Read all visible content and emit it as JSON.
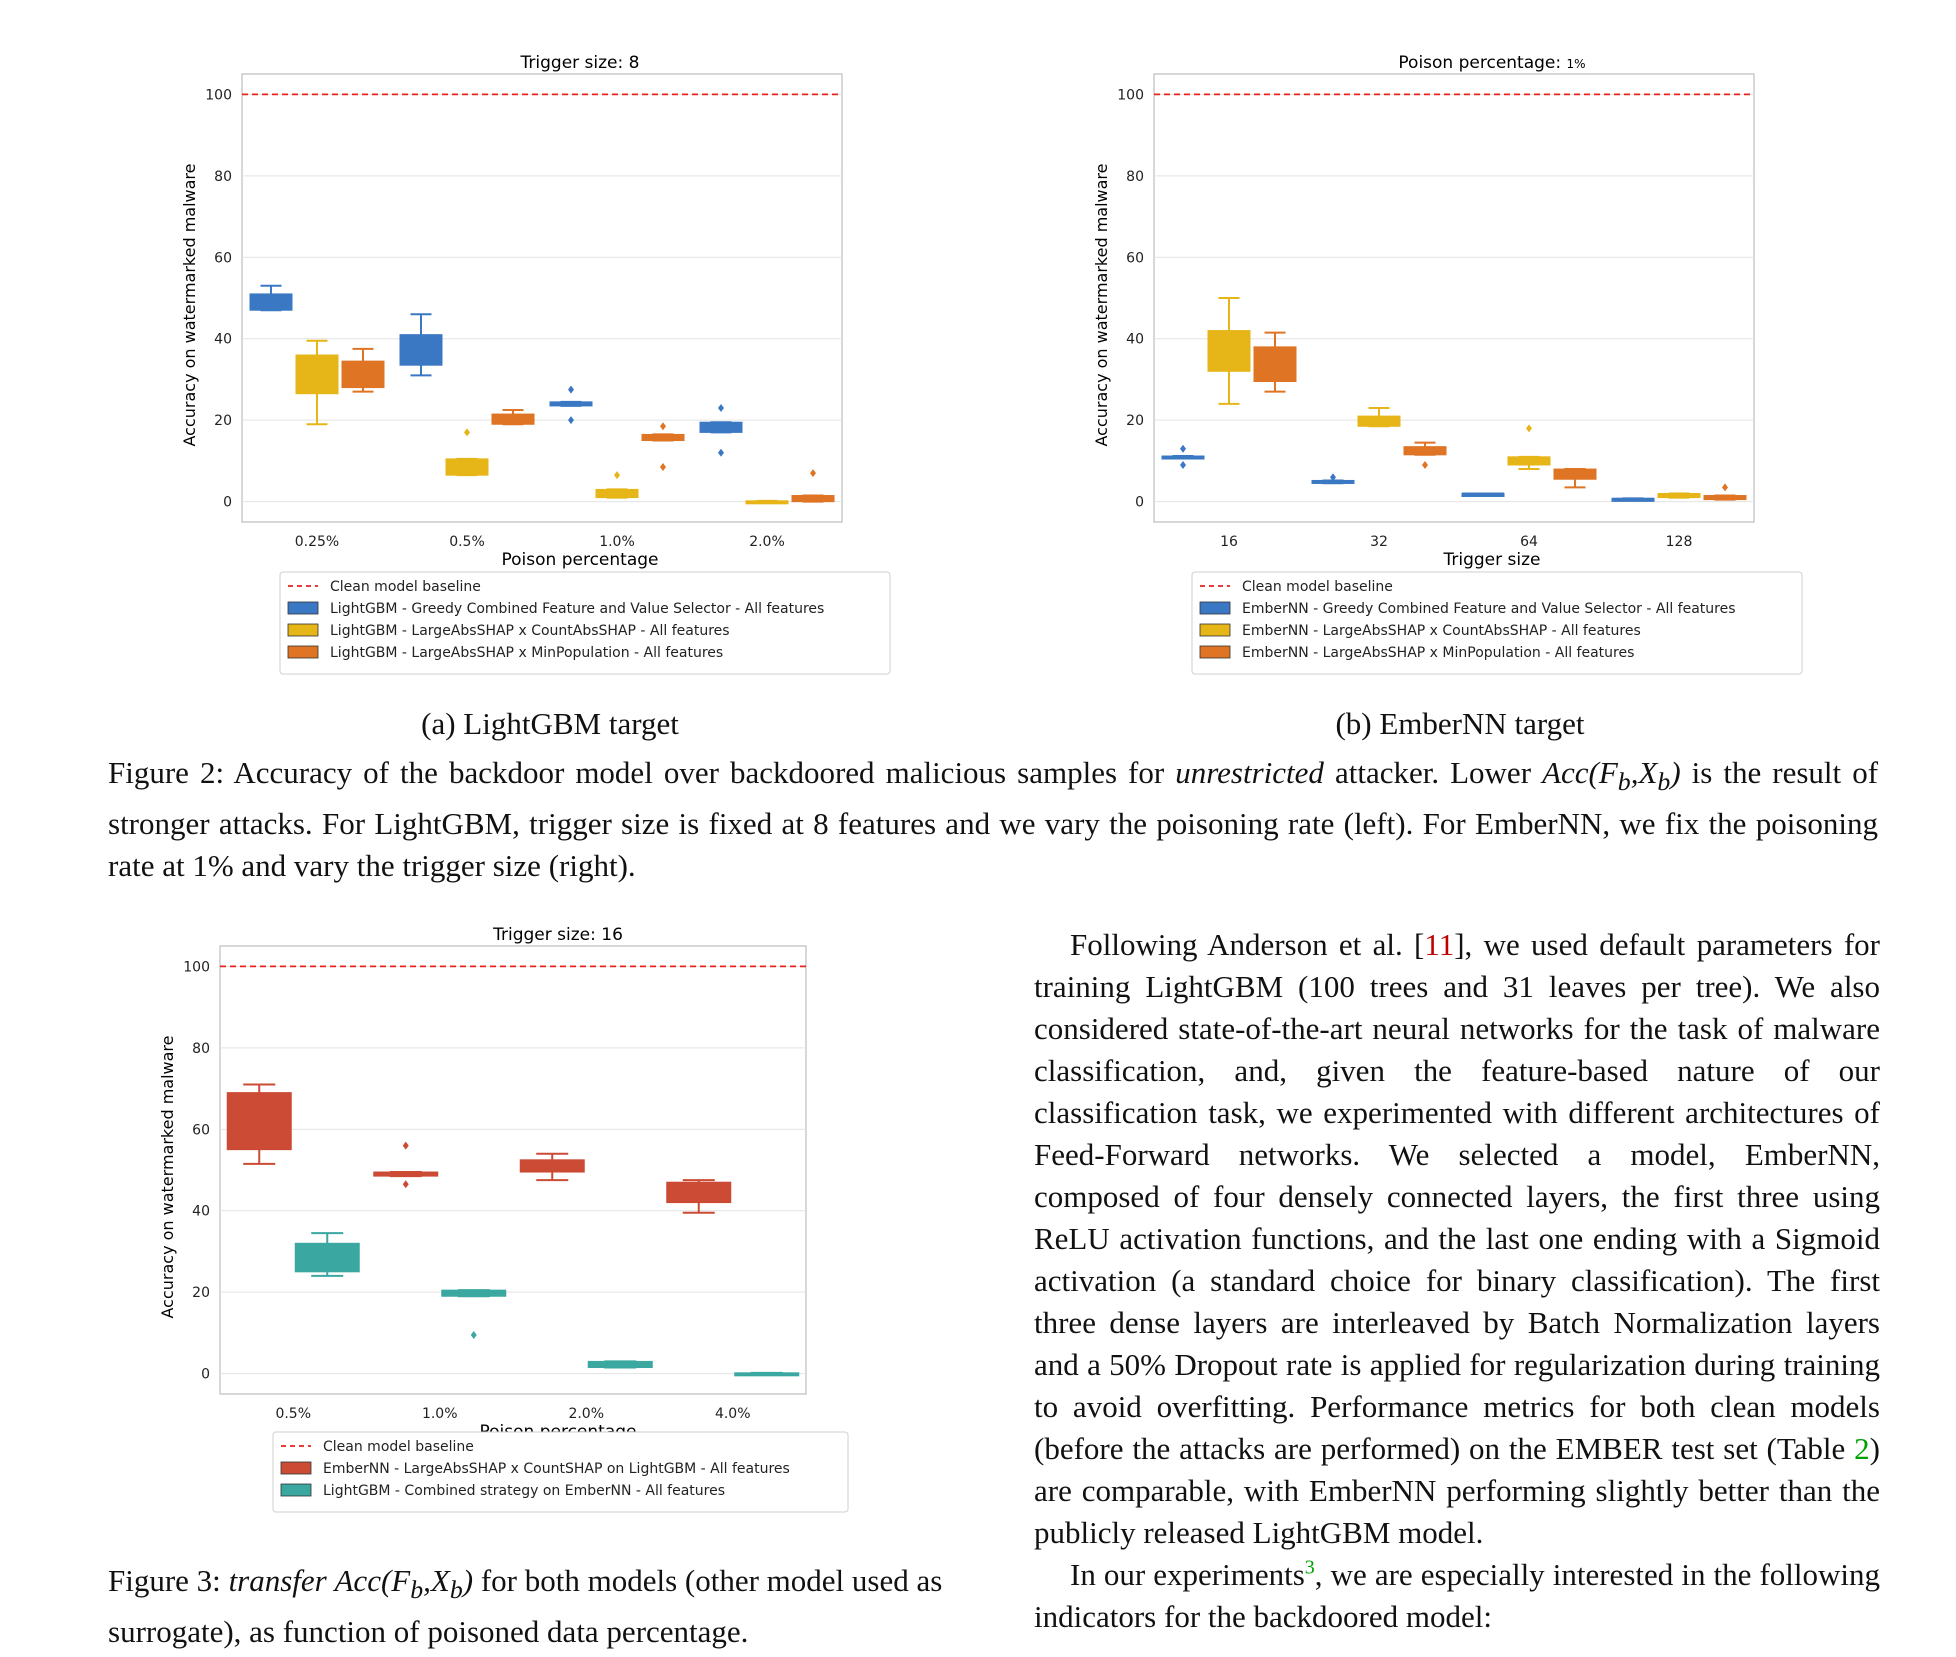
{
  "charts": [
    {
      "title_prefix": "Trigger size: ",
      "title_value": "8",
      "xlabel": "Poison percentage",
      "ylabel": "Accuracy on watermarked malware",
      "yticks": [
        "0",
        "20",
        "40",
        "60",
        "80",
        "100"
      ],
      "categories": [
        "0.25%",
        "0.5%",
        "1.0%",
        "2.0%"
      ],
      "legend": [
        {
          "label": "Clean model baseline",
          "kind": "line",
          "color": "#e8221c"
        },
        {
          "label": "LightGBM - Greedy Combined Feature and Value Selector - All features",
          "kind": "box",
          "color": "#3b78c3"
        },
        {
          "label": "LightGBM - LargeAbsSHAP x CountAbsSHAP - All features",
          "kind": "box",
          "color": "#e6b517"
        },
        {
          "label": "LightGBM - LargeAbsSHAP x MinPopulation - All features",
          "kind": "box",
          "color": "#de7424"
        }
      ]
    },
    {
      "title_prefix": "Poison percentage: ",
      "title_value": "1%",
      "xlabel": "Trigger size",
      "ylabel": "Accuracy on watermarked malware",
      "yticks": [
        "0",
        "20",
        "40",
        "60",
        "80",
        "100"
      ],
      "categories": [
        "16",
        "32",
        "64",
        "128"
      ],
      "legend": [
        {
          "label": "Clean model baseline",
          "kind": "line",
          "color": "#e8221c"
        },
        {
          "label": "EmberNN - Greedy Combined Feature and Value Selector - All features",
          "kind": "box",
          "color": "#3b78c3"
        },
        {
          "label": "EmberNN - LargeAbsSHAP x CountAbsSHAP - All features",
          "kind": "box",
          "color": "#e6b517"
        },
        {
          "label": "EmberNN - LargeAbsSHAP x MinPopulation - All features",
          "kind": "box",
          "color": "#de7424"
        }
      ]
    },
    {
      "title_prefix": "Trigger size: ",
      "title_value": "16",
      "xlabel": "Poison percentage",
      "ylabel": "Accuracy on watermarked malware",
      "yticks": [
        "0",
        "20",
        "40",
        "60",
        "80",
        "100"
      ],
      "categories": [
        "0.5%",
        "1.0%",
        "2.0%",
        "4.0%"
      ],
      "legend": [
        {
          "label": "Clean model baseline",
          "kind": "line",
          "color": "#e8221c"
        },
        {
          "label": "EmberNN - LargeAbsSHAP x CountSHAP on LightGBM - All features",
          "kind": "box",
          "color": "#cc4b35"
        },
        {
          "label": "LightGBM - Combined strategy on EmberNN - All features",
          "kind": "box",
          "color": "#3aa8a0"
        }
      ]
    }
  ],
  "chart_data": [
    {
      "type": "box",
      "title": "Trigger size: 8",
      "xlabel": "Poison percentage",
      "ylabel": "Accuracy on watermarked malware",
      "ylim": [
        -5,
        105
      ],
      "baseline": 100,
      "categories": [
        "0.25%",
        "0.5%",
        "1.0%",
        "2.0%"
      ],
      "series": [
        {
          "name": "LightGBM - Greedy Combined Feature and Value Selector - All features",
          "color": "#3b78c3",
          "boxes": [
            {
              "min": 47,
              "q1": 47,
              "median": 48,
              "q3": 51,
              "max": 53,
              "outliers": []
            },
            {
              "min": 31,
              "q1": 33.5,
              "median": 36,
              "q3": 41,
              "max": 46,
              "outliers": []
            },
            {
              "min": 23.5,
              "q1": 23.5,
              "median": 24,
              "q3": 24.5,
              "max": 24.5,
              "outliers": [
                27.5,
                20
              ]
            },
            {
              "min": 17,
              "q1": 17,
              "median": 18,
              "q3": 19.5,
              "max": 19.5,
              "outliers": [
                23,
                12
              ]
            }
          ]
        },
        {
          "name": "LightGBM - LargeAbsSHAP x CountAbsSHAP - All features",
          "color": "#e6b517",
          "boxes": [
            {
              "min": 19,
              "q1": 26.5,
              "median": 30,
              "q3": 36,
              "max": 39.5,
              "outliers": []
            },
            {
              "min": 6.5,
              "q1": 6.5,
              "median": 9,
              "q3": 10.5,
              "max": 10.5,
              "outliers": [
                17
              ]
            },
            {
              "min": 1,
              "q1": 1,
              "median": 2,
              "q3": 3,
              "max": 3,
              "outliers": [
                6.5
              ]
            },
            {
              "min": 0,
              "q1": 0,
              "median": 0,
              "q3": 0.2,
              "max": 0.2,
              "outliers": []
            }
          ]
        },
        {
          "name": "LightGBM - LargeAbsSHAP x MinPopulation - All features",
          "color": "#de7424",
          "boxes": [
            {
              "min": 27,
              "q1": 28,
              "median": 31,
              "q3": 34.5,
              "max": 37.5,
              "outliers": []
            },
            {
              "min": 19,
              "q1": 19,
              "median": 21,
              "q3": 21.5,
              "max": 22.5,
              "outliers": []
            },
            {
              "min": 15,
              "q1": 15,
              "median": 16,
              "q3": 16.5,
              "max": 16.5,
              "outliers": [
                18.5,
                8.5
              ]
            },
            {
              "min": 0,
              "q1": 0,
              "median": 1,
              "q3": 1.5,
              "max": 1.5,
              "outliers": [
                7
              ]
            }
          ]
        }
      ]
    },
    {
      "type": "box",
      "title": "Poison percentage: 1%",
      "xlabel": "Trigger size",
      "ylabel": "Accuracy on watermarked malware",
      "ylim": [
        -5,
        105
      ],
      "baseline": 100,
      "categories": [
        "16",
        "32",
        "64",
        "128"
      ],
      "series": [
        {
          "name": "EmberNN - Greedy Combined Feature and Value Selector - All features",
          "color": "#3b78c3",
          "boxes": [
            {
              "min": 11,
              "q1": 11,
              "median": 11,
              "q3": 11.2,
              "max": 11.2,
              "outliers": [
                13,
                9
              ]
            },
            {
              "min": 4.5,
              "q1": 4.5,
              "median": 5,
              "q3": 5.2,
              "max": 5.2,
              "outliers": [
                6
              ]
            },
            {
              "min": 1.8,
              "q1": 1.8,
              "median": 2,
              "q3": 2,
              "max": 2,
              "outliers": []
            },
            {
              "min": 0.5,
              "q1": 0.5,
              "median": 0.7,
              "q3": 0.8,
              "max": 0.8,
              "outliers": []
            }
          ]
        },
        {
          "name": "EmberNN - LargeAbsSHAP x CountAbsSHAP - All features",
          "color": "#e6b517",
          "boxes": [
            {
              "min": 24,
              "q1": 32,
              "median": 37,
              "q3": 42,
              "max": 50,
              "outliers": []
            },
            {
              "min": 18.5,
              "q1": 18.5,
              "median": 20,
              "q3": 21,
              "max": 23,
              "outliers": []
            },
            {
              "min": 8,
              "q1": 9,
              "median": 10,
              "q3": 11,
              "max": 11,
              "outliers": [
                18
              ]
            },
            {
              "min": 1,
              "q1": 1,
              "median": 1.5,
              "q3": 2,
              "max": 2,
              "outliers": []
            }
          ]
        },
        {
          "name": "EmberNN - LargeAbsSHAP x MinPopulation - All features",
          "color": "#de7424",
          "boxes": [
            {
              "min": 27,
              "q1": 29.5,
              "median": 33,
              "q3": 38,
              "max": 41.5,
              "outliers": []
            },
            {
              "min": 11.5,
              "q1": 11.5,
              "median": 12.5,
              "q3": 13.5,
              "max": 14.5,
              "outliers": [
                9
              ]
            },
            {
              "min": 3.5,
              "q1": 5.5,
              "median": 7,
              "q3": 8,
              "max": 8,
              "outliers": []
            },
            {
              "min": 0.5,
              "q1": 0.5,
              "median": 1,
              "q3": 1.5,
              "max": 1.5,
              "outliers": [
                3.5
              ]
            }
          ]
        }
      ]
    },
    {
      "type": "box",
      "title": "Trigger size: 16",
      "xlabel": "Poison percentage",
      "ylabel": "Accuracy on watermarked malware",
      "ylim": [
        -5,
        105
      ],
      "baseline": 100,
      "categories": [
        "0.5%",
        "1.0%",
        "2.0%",
        "4.0%"
      ],
      "series": [
        {
          "name": "EmberNN - LargeAbsSHAP x CountSHAP on LightGBM - All features",
          "color": "#cc4b35",
          "boxes": [
            {
              "min": 51.5,
              "q1": 55,
              "median": 62,
              "q3": 69,
              "max": 71,
              "outliers": []
            },
            {
              "min": 48.5,
              "q1": 48.5,
              "median": 49,
              "q3": 49.5,
              "max": 49.5,
              "outliers": [
                56,
                46.5
              ]
            },
            {
              "min": 47.5,
              "q1": 49.5,
              "median": 51,
              "q3": 52.5,
              "max": 54,
              "outliers": []
            },
            {
              "min": 39.5,
              "q1": 42,
              "median": 44,
              "q3": 47,
              "max": 47.5,
              "outliers": []
            }
          ]
        },
        {
          "name": "LightGBM - Combined strategy on EmberNN - All features",
          "color": "#3aa8a0",
          "boxes": [
            {
              "min": 24,
              "q1": 25,
              "median": 28,
              "q3": 32,
              "max": 34.5,
              "outliers": []
            },
            {
              "min": 19,
              "q1": 19,
              "median": 19.5,
              "q3": 20.5,
              "max": 20.5,
              "outliers": [
                9.5
              ]
            },
            {
              "min": 1.5,
              "q1": 1.5,
              "median": 2,
              "q3": 3,
              "max": 3,
              "outliers": []
            },
            {
              "min": 0,
              "q1": 0,
              "median": 0,
              "q3": 0.2,
              "max": 0.2,
              "outliers": []
            }
          ]
        }
      ]
    }
  ],
  "subcaptions": {
    "a": "(a) LightGBM target",
    "b": "(b) EmberNN target"
  },
  "figure2": {
    "lead": "Figure 2: Accuracy of the backdoor model over backdoored malicious samples for ",
    "emph": "unrestricted",
    "mid": " attacker. Lower ",
    "math": "Acc(F",
    "sub1": "b",
    "comma": ",X",
    "sub2": "b",
    "close": ")",
    "rest": " is the result of stronger attacks. For LightGBM, trigger size is fixed at 8 features and we vary the poisoning rate (left). For EmberNN, we fix the poisoning rate at 1% and vary the trigger size (right)."
  },
  "figure3": {
    "lead": "Figure 3: ",
    "emph": "transfer",
    "math": "Acc(F",
    "sub1": "b",
    "comma": ",X",
    "sub2": "b",
    "close": ")",
    "rest": " for both models (other model used as surrogate), as function of poisoned data percentage."
  },
  "body": {
    "p1_a": "Following Anderson et al. [",
    "p1_ref": "11",
    "p1_b": "], we used default parameters for training LightGBM (100 trees and 31 leaves per tree). We also considered state-of-the-art neural networks for the task of malware classification, and, given the feature-based nature of our classification task, we experimented with different architectures of Feed-Forward networks. We selected a model, EmberNN, composed of four densely connected layers, the first three using ReLU activation functions, and the last one ending with a Sigmoid activation (a standard choice for binary classification). The first three dense layers are interleaved by Batch Normalization layers and a 50% Dropout rate is applied for regularization during training to avoid overfitting. Performance metrics for both clean models (before the attacks are performed) on the EMBER test set (Table ",
    "p1_ref2": "2",
    "p1_c": ") are comparable, with EmberNN performing slightly better than the publicly released LightGBM model.",
    "p2_a": "In our experiments",
    "p2_sup": "3",
    "p2_b": ", we are especially interested in the following indicators for the backdoored model:"
  }
}
